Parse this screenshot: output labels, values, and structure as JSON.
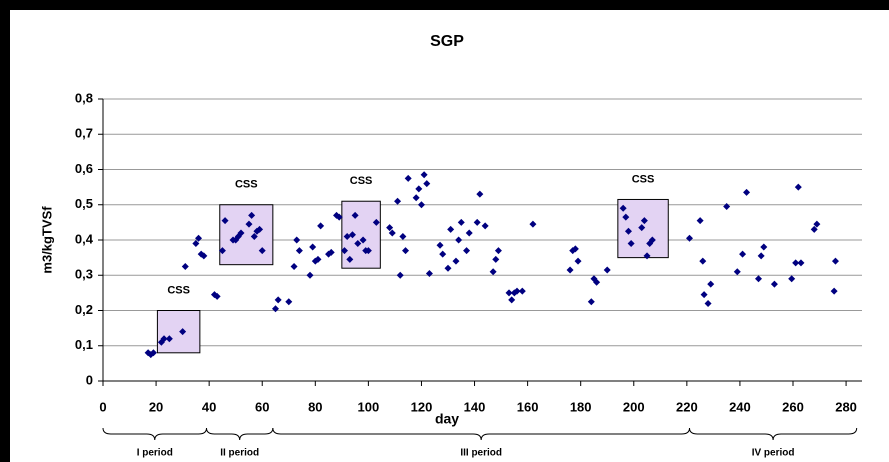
{
  "chart_data": {
    "type": "scatter",
    "title": "SGP",
    "x_label": "day",
    "y_label": "m3/kgTVSf",
    "series": [
      {
        "name": "SGP",
        "color": "#000080",
        "x": [
          17,
          18,
          19,
          22,
          23,
          25,
          30,
          31,
          35,
          36,
          37,
          38,
          42,
          43,
          45,
          46,
          49,
          50,
          51,
          52,
          55,
          56,
          57,
          58,
          59,
          60,
          65,
          66,
          70,
          72,
          73,
          74,
          78,
          79,
          80,
          81,
          82,
          85,
          86,
          88,
          89,
          91,
          92,
          93,
          94,
          95,
          96,
          98,
          99,
          100,
          103,
          108,
          109,
          111,
          112,
          113,
          114,
          115,
          118,
          119,
          120,
          121,
          122,
          123,
          127,
          128,
          130,
          131,
          133,
          134,
          135,
          137,
          138,
          141,
          142,
          144,
          147,
          148,
          149,
          153,
          154,
          155,
          156,
          158,
          162,
          176,
          177,
          178,
          179,
          184,
          185,
          186,
          190,
          196,
          197,
          198,
          199,
          203,
          204,
          205,
          206,
          207,
          221,
          225,
          226,
          226.5,
          228,
          229,
          235,
          239,
          241,
          242.5,
          247,
          248,
          249,
          253,
          259.5,
          261,
          262,
          263,
          268,
          269,
          275.5,
          276
        ],
        "values": [
          0.08,
          0.075,
          0.08,
          0.11,
          0.12,
          0.12,
          0.14,
          0.325,
          0.39,
          0.405,
          0.36,
          0.355,
          0.245,
          0.24,
          0.37,
          0.455,
          0.4,
          0.4,
          0.41,
          0.42,
          0.445,
          0.47,
          0.41,
          0.425,
          0.43,
          0.37,
          0.205,
          0.23,
          0.225,
          0.325,
          0.4,
          0.37,
          0.3,
          0.38,
          0.34,
          0.345,
          0.44,
          0.36,
          0.365,
          0.47,
          0.465,
          0.37,
          0.41,
          0.345,
          0.415,
          0.47,
          0.39,
          0.4,
          0.37,
          0.37,
          0.45,
          0.435,
          0.42,
          0.51,
          0.3,
          0.41,
          0.37,
          0.575,
          0.52,
          0.545,
          0.5,
          0.585,
          0.56,
          0.305,
          0.385,
          0.36,
          0.32,
          0.43,
          0.34,
          0.4,
          0.45,
          0.37,
          0.42,
          0.45,
          0.53,
          0.44,
          0.31,
          0.345,
          0.37,
          0.25,
          0.23,
          0.25,
          0.255,
          0.255,
          0.445,
          0.315,
          0.37,
          0.375,
          0.34,
          0.225,
          0.29,
          0.28,
          0.315,
          0.49,
          0.465,
          0.425,
          0.39,
          0.435,
          0.455,
          0.355,
          0.39,
          0.4,
          0.405,
          0.455,
          0.34,
          0.245,
          0.22,
          0.275,
          0.495,
          0.31,
          0.36,
          0.535,
          0.29,
          0.355,
          0.38,
          0.275,
          0.29,
          0.335,
          0.55,
          0.335,
          0.43,
          0.445,
          0.255,
          0.34
        ]
      }
    ],
    "xlim": [
      0,
      286
    ],
    "xticks": [
      0,
      20,
      40,
      60,
      80,
      100,
      120,
      140,
      160,
      180,
      200,
      220,
      240,
      260,
      280
    ],
    "ylim": [
      0,
      0.8
    ],
    "yticks": [
      0,
      {
        "value": 0.1,
        "label": "0,1"
      },
      {
        "value": 0.2,
        "label": "0,2"
      },
      {
        "value": 0.3,
        "label": "0,3"
      },
      {
        "value": 0.4,
        "label": "0,4"
      },
      {
        "value": 0.5,
        "label": "0,5"
      },
      {
        "value": 0.6,
        "label": "0,6"
      },
      {
        "value": 0.7,
        "label": "0,7"
      },
      {
        "value": 0.8,
        "label": "0,8"
      }
    ],
    "grid": true,
    "regions": [
      {
        "label": "CSS",
        "x": [
          20.5,
          36.5
        ],
        "y": [
          0.08,
          0.2
        ]
      },
      {
        "label": "CSS",
        "x": [
          44,
          64
        ],
        "y": [
          0.33,
          0.5
        ]
      },
      {
        "label": "CSS",
        "x": [
          90,
          104.5
        ],
        "y": [
          0.32,
          0.51
        ]
      },
      {
        "label": "CSS",
        "x": [
          194,
          213
        ],
        "y": [
          0.35,
          0.515
        ]
      }
    ],
    "periods": [
      {
        "label": "I period",
        "x": [
          0,
          39
        ]
      },
      {
        "label": "II period",
        "x": [
          39,
          64
        ]
      },
      {
        "label": "III period",
        "x": [
          64,
          221
        ]
      },
      {
        "label": "IV period",
        "x": [
          221,
          284
        ]
      }
    ]
  }
}
